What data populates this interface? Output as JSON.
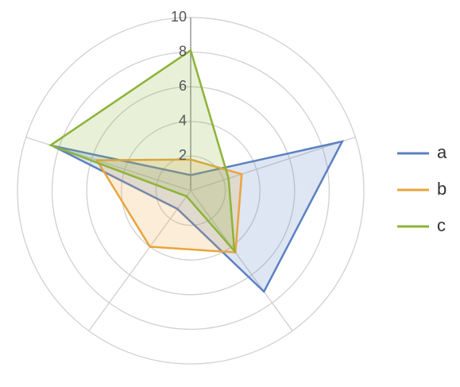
{
  "chart_data": {
    "type": "radar",
    "categories": [
      null,
      null,
      null,
      null,
      null
    ],
    "series": [
      {
        "name": "a",
        "color": "#5b80c2",
        "values": [
          0.9,
          9.2,
          7.2,
          1.3,
          8.4
        ]
      },
      {
        "name": "b",
        "color": "#eaa43c",
        "values": [
          1.8,
          3.1,
          4.4,
          4.0,
          5.7
        ]
      },
      {
        "name": "c",
        "color": "#8db33a",
        "values": [
          8.1,
          2.3,
          4.3,
          0.4,
          8.5
        ]
      }
    ],
    "ylim": [
      0,
      10
    ],
    "yticks": [
      2,
      4,
      6,
      8,
      10
    ],
    "grid": true,
    "legend": "right"
  }
}
